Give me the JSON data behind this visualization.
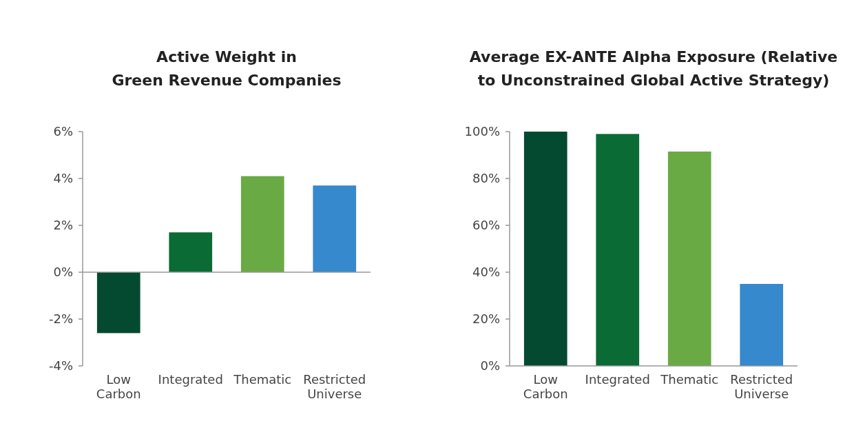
{
  "chart_data": [
    {
      "type": "bar",
      "title": "Active Weight in\nGreen Revenue Companies",
      "categories": [
        "Low\nCarbon",
        "Integrated",
        "Thematic",
        "Restricted\nUniverse"
      ],
      "values": [
        -2.6,
        1.7,
        4.1,
        3.7
      ],
      "colors": [
        "#044a30",
        "#0b6b35",
        "#6aaa45",
        "#3589cc"
      ],
      "ylim": [
        -4,
        6
      ],
      "yticks": [
        {
          "value": -4,
          "label": "-4%"
        },
        {
          "value": -2,
          "label": "-2%"
        },
        {
          "value": 0,
          "label": "0%"
        },
        {
          "value": 2,
          "label": "2%"
        },
        {
          "value": 4,
          "label": "4%"
        },
        {
          "value": 6,
          "label": "6%"
        }
      ]
    },
    {
      "type": "bar",
      "title": "Average EX-ANTE Alpha Exposure (Relative\nto Unconstrained Global Active Strategy)",
      "categories": [
        "Low\nCarbon",
        "Integrated",
        "Thematic",
        "Restricted\nUniverse"
      ],
      "values": [
        100,
        99,
        91.5,
        35
      ],
      "colors": [
        "#044a30",
        "#0b6b35",
        "#6aaa45",
        "#3589cc"
      ],
      "ylim": [
        0,
        100
      ],
      "yticks": [
        {
          "value": 0,
          "label": "0%"
        },
        {
          "value": 20,
          "label": "20%"
        },
        {
          "value": 40,
          "label": "40%"
        },
        {
          "value": 60,
          "label": "60%"
        },
        {
          "value": 80,
          "label": "80%"
        },
        {
          "value": 100,
          "label": "100%"
        }
      ]
    }
  ]
}
